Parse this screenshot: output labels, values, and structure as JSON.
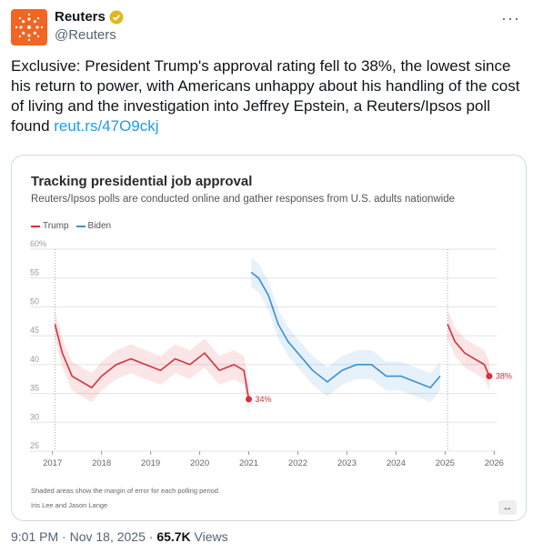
{
  "author": {
    "name": "Reuters",
    "handle": "@Reuters",
    "verified_icon": "verified-badge-icon",
    "avatar_icon": "reuters-logo-icon",
    "brand_color": "#f26522"
  },
  "tweet": {
    "text": "Exclusive: President Trump's approval rating fell to 38%, the lowest since his return to power, with Americans unhappy about his handling of the cost of living and the investigation into Jeffrey Epstein, a Reuters/Ipsos poll found ",
    "link_text": "reut.rs/47O9ckj"
  },
  "card": {
    "expand_label": "↔",
    "footnote": "Shaded areas show the margin of error for each polling period.",
    "byline": "Iris Lee and Jason Lange"
  },
  "meta": {
    "time": "9:01 PM · Nov 18, 2025 · ",
    "views_count": "65.7K",
    "views_label": " Views"
  },
  "chart_data": {
    "type": "line",
    "title": "Tracking presidential job approval",
    "subtitle": "Reuters/Ipsos polls are conducted online and gather responses from U.S. adults nationwide",
    "ylim": [
      25,
      60
    ],
    "yticks": [
      "60%",
      "55",
      "50",
      "45",
      "40",
      "35",
      "30",
      "25"
    ],
    "xticks": [
      "2017",
      "2018",
      "2019",
      "2020",
      "2021",
      "2022",
      "2023",
      "2024",
      "2025",
      "2026"
    ],
    "grid": true,
    "legend_placement": "top-left",
    "series": [
      {
        "name": "Trump",
        "color": "#d62f3d",
        "x": [
          2017.05,
          2017.2,
          2017.4,
          2017.6,
          2017.8,
          2018.0,
          2018.3,
          2018.6,
          2018.9,
          2019.2,
          2019.5,
          2019.8,
          2020.1,
          2020.4,
          2020.7,
          2020.9,
          2021.0
        ],
        "y": [
          47,
          42,
          38,
          37,
          36,
          38,
          40,
          41,
          40,
          39,
          41,
          40,
          42,
          39,
          40,
          39,
          34
        ],
        "end_label": "34%"
      },
      {
        "name": "Biden",
        "color": "#3a8fd6",
        "x": [
          2021.05,
          2021.2,
          2021.4,
          2021.6,
          2021.8,
          2022.0,
          2022.3,
          2022.6,
          2022.9,
          2023.2,
          2023.5,
          2023.8,
          2024.1,
          2024.4,
          2024.7,
          2024.9
        ],
        "y": [
          56,
          55,
          52,
          47,
          44,
          42,
          39,
          37,
          39,
          40,
          40,
          38,
          38,
          37,
          36,
          38
        ]
      },
      {
        "name": "Trump",
        "color": "#d62f3d",
        "x": [
          2025.05,
          2025.2,
          2025.4,
          2025.6,
          2025.8,
          2025.9
        ],
        "y": [
          47,
          44,
          42,
          41,
          40,
          38
        ],
        "end_label": "38%"
      }
    ]
  }
}
